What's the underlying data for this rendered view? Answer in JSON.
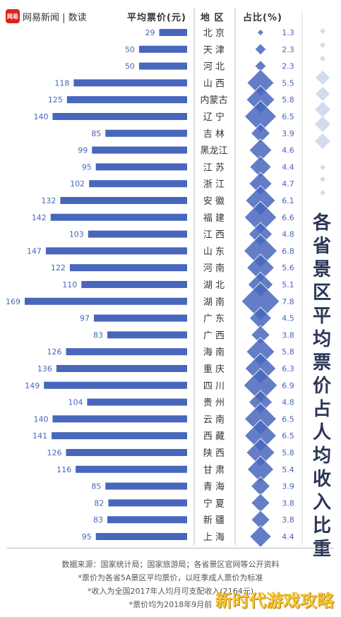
{
  "brand": {
    "badge": "网易",
    "text": "网易新闻 | 数读"
  },
  "headers": {
    "price": "平均票价(元)",
    "region": "地 区",
    "ratio": "占比(%)"
  },
  "side_title": "各省景区平均票价占人均收入比重",
  "notes": [
    "数据来源：国家统计局；国家旅游局；各省景区官网等公开资料",
    "*票价为各省5A景区平均票价，以旺季成人票价为标准",
    "*收入为全国2017年人均月可支配收入(2164元)",
    "*票价均为2018年9月前"
  ],
  "watermark": "新时代游戏攻略",
  "colors": {
    "bar": "#4866bc",
    "diamond": "#4866bc",
    "text": "#333333",
    "title": "#2b3556"
  },
  "chart_data": {
    "type": "bar",
    "title": "各省景区平均票价占人均收入比重",
    "categories": [
      "北 京",
      "天 津",
      "河 北",
      "山 西",
      "内蒙古",
      "辽 宁",
      "吉 林",
      "黑龙江",
      "江 苏",
      "浙 江",
      "安 徽",
      "福 建",
      "江 西",
      "山 东",
      "河 南",
      "湖 北",
      "湖 南",
      "广 东",
      "广 西",
      "海 南",
      "重 庆",
      "四 川",
      "贵 州",
      "云 南",
      "西 藏",
      "陕 西",
      "甘 肃",
      "青 海",
      "宁 夏",
      "新 疆",
      "上 海"
    ],
    "series": [
      {
        "name": "平均票价(元)",
        "values": [
          29,
          50,
          50,
          118,
          125,
          140,
          85,
          99,
          95,
          102,
          132,
          142,
          103,
          147,
          122,
          110,
          169,
          97,
          83,
          126,
          136,
          149,
          104,
          140,
          141,
          126,
          116,
          85,
          82,
          83,
          95
        ]
      },
      {
        "name": "占比(%)",
        "values": [
          1.3,
          2.3,
          2.3,
          5.5,
          5.8,
          6.5,
          3.9,
          4.6,
          4.4,
          4.7,
          6.1,
          6.6,
          4.8,
          6.8,
          5.6,
          5.1,
          7.8,
          4.5,
          3.8,
          5.8,
          6.3,
          6.9,
          4.8,
          6.5,
          6.5,
          5.8,
          5.4,
          3.9,
          3.8,
          3.8,
          4.4
        ]
      }
    ],
    "legend_diamonds": [
      1,
      2,
      3,
      4,
      5,
      6,
      7,
      8
    ]
  }
}
